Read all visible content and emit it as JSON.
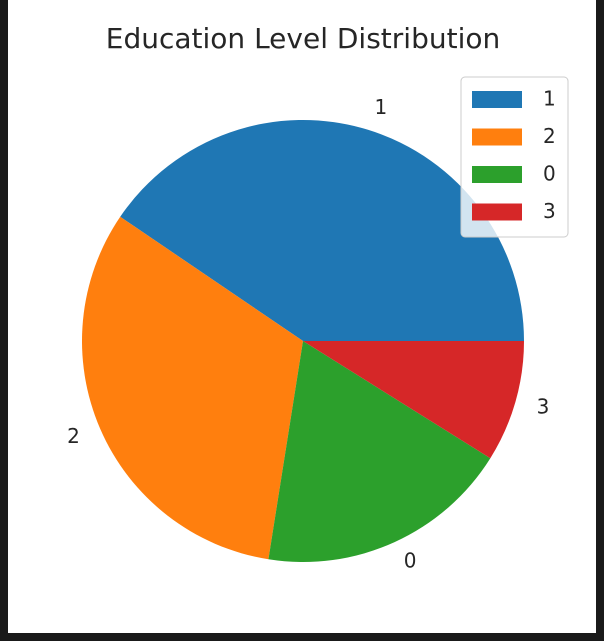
{
  "chart_data": {
    "type": "pie",
    "title": "Education Level Distribution",
    "labels": [
      "1",
      "2",
      "0",
      "3"
    ],
    "values": [
      40.5,
      32.0,
      18.6,
      8.9
    ],
    "colors": [
      "#1f77b4",
      "#ff7f0e",
      "#2ca02c",
      "#d62728"
    ],
    "start_angle_deg": 0,
    "direction": "counterclockwise",
    "legend": {
      "placement": "top-right",
      "entries": [
        "1",
        "2",
        "0",
        "3"
      ]
    }
  }
}
